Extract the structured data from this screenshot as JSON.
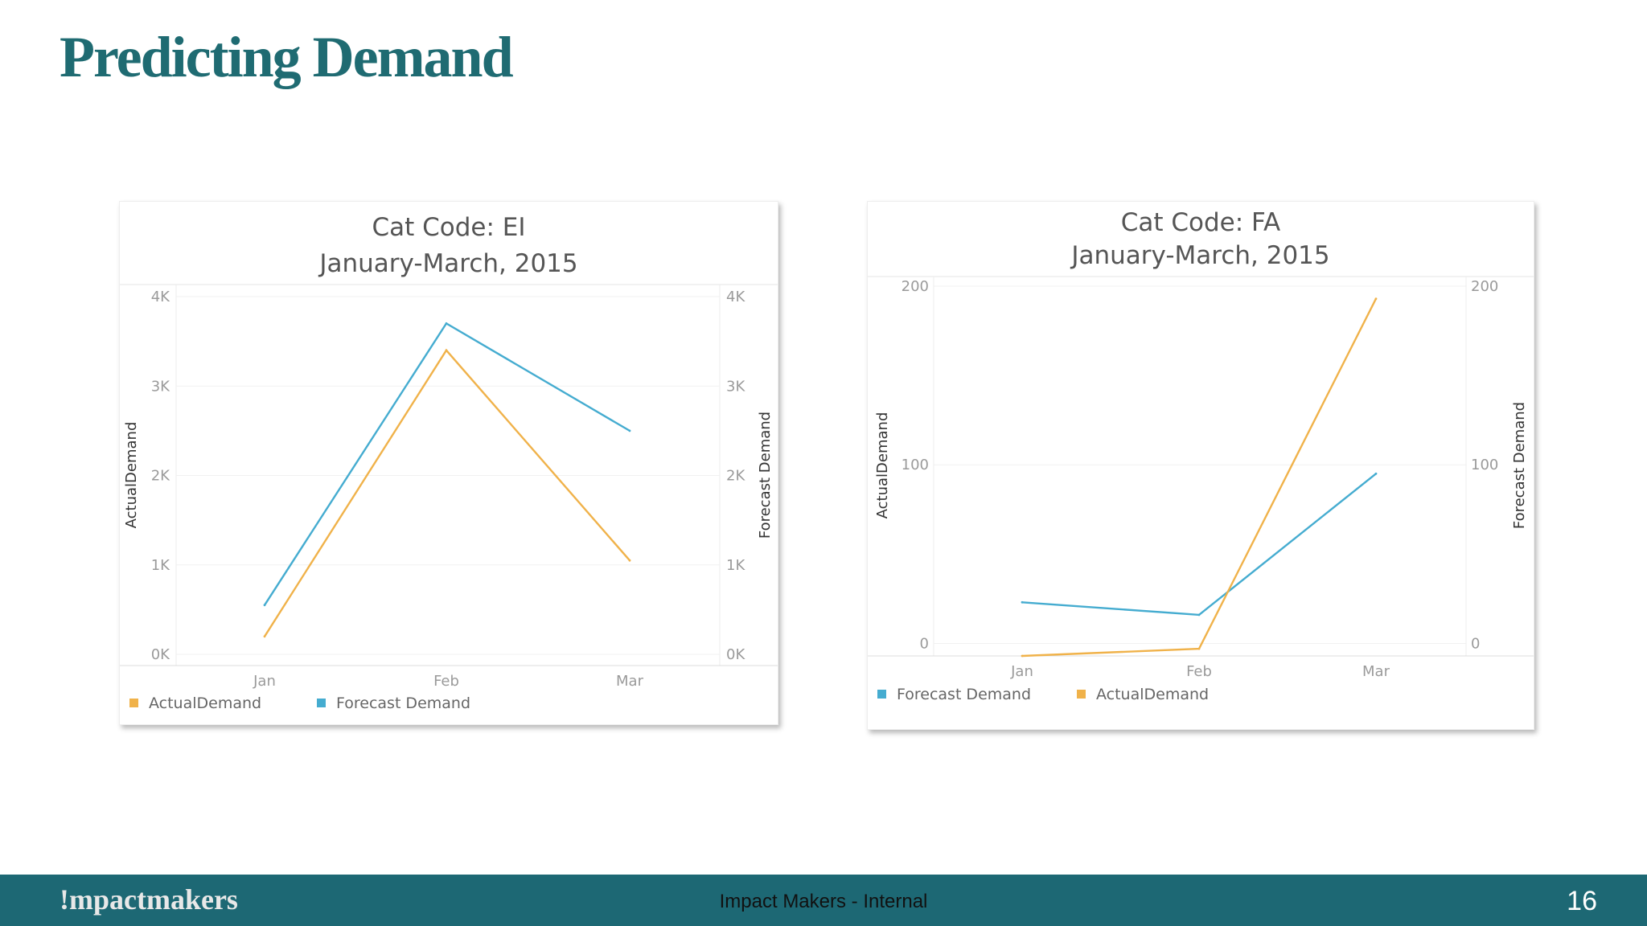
{
  "slide": {
    "title": "Predicting Demand",
    "footer_logo": "!mpactmakers",
    "footer_center": "Impact Makers - Internal",
    "page_number": "16"
  },
  "colors": {
    "actual": "#f0b24a",
    "forecast": "#45acd0",
    "title": "#1f6b72",
    "footer_bg": "#1d6874"
  },
  "chart_data": [
    {
      "type": "line",
      "title": [
        "Cat Code: EI",
        "January-March, 2015"
      ],
      "categories": [
        "Jan",
        "Feb",
        "Mar"
      ],
      "series": [
        {
          "name": "ActualDemand",
          "axis": "left",
          "color": "#f0b24a",
          "values": [
            200,
            3400,
            1050
          ]
        },
        {
          "name": "Forecast Demand",
          "axis": "right",
          "color": "#45acd0",
          "values": [
            550,
            3700,
            2500
          ]
        }
      ],
      "ylabel_left": "ActualDemand",
      "ylabel_right": "Forecast Demand",
      "ylim_left": [
        0,
        4000
      ],
      "ylim_right": [
        0,
        4000
      ],
      "yticks_left": [
        0,
        1000,
        2000,
        3000,
        4000
      ],
      "yticks_right": [
        0,
        1000,
        2000,
        3000,
        4000
      ],
      "ytick_labels_left": [
        "0K",
        "1K",
        "2K",
        "3K",
        "4K"
      ],
      "ytick_labels_right": [
        "0K",
        "1K",
        "2K",
        "3K",
        "4K"
      ],
      "legend": [
        {
          "label": "ActualDemand",
          "color": "#f0b24a"
        },
        {
          "label": "Forecast Demand",
          "color": "#45acd0"
        }
      ],
      "legend_position": "bottom-left",
      "grid": true
    },
    {
      "type": "line",
      "title": [
        "Cat Code: FA",
        "January-March, 2015"
      ],
      "categories": [
        "Jan",
        "Feb",
        "Mar"
      ],
      "series": [
        {
          "name": "Forecast Demand",
          "axis": "right",
          "color": "#45acd0",
          "values": [
            23,
            16,
            95
          ]
        },
        {
          "name": "ActualDemand",
          "axis": "left",
          "color": "#f0b24a",
          "values": [
            -7,
            -3,
            193
          ]
        }
      ],
      "ylabel_left": "ActualDemand",
      "ylabel_right": "Forecast Demand",
      "ylim_left": [
        -7,
        200
      ],
      "ylim_right": [
        -7,
        200
      ],
      "yticks_left": [
        0,
        100,
        200
      ],
      "yticks_right": [
        0,
        100,
        200
      ],
      "ytick_labels_left": [
        "0",
        "100",
        "200"
      ],
      "ytick_labels_right": [
        "0",
        "100",
        "200"
      ],
      "legend": [
        {
          "label": "Forecast Demand",
          "color": "#45acd0"
        },
        {
          "label": "ActualDemand",
          "color": "#f0b24a"
        }
      ],
      "legend_position": "bottom-left",
      "grid": true
    }
  ]
}
